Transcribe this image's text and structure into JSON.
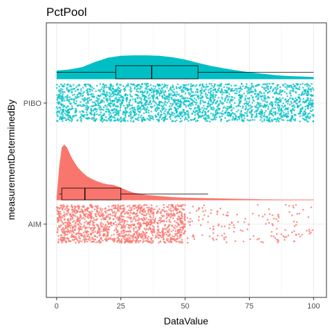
{
  "chart_data": {
    "type": "raincloud",
    "title": "PctPool",
    "xlabel": "DataValue",
    "ylabel": "measurementDeterminedBy",
    "xlim": [
      -4,
      105
    ],
    "x_ticks": [
      0,
      25,
      50,
      75,
      100
    ],
    "x_tick_labels": [
      "0",
      "25",
      "50",
      "75",
      "100"
    ],
    "categories": [
      "AIM",
      "PIBO"
    ],
    "grid": true,
    "legend": "none",
    "series": [
      {
        "category": "AIM",
        "color": "#F8766D",
        "box": {
          "min": 1,
          "q1": 2,
          "median": 11,
          "q3": 25,
          "max": 59
        },
        "density": {
          "x": [
            0,
            1,
            2,
            3,
            4,
            5,
            6,
            8,
            10,
            12,
            15,
            18,
            20,
            22,
            24,
            25,
            28,
            30,
            35,
            40,
            45,
            50,
            55,
            60,
            70,
            80,
            90,
            100
          ],
          "y": [
            0.05,
            0.6,
            0.95,
            1.0,
            0.95,
            0.85,
            0.75,
            0.6,
            0.5,
            0.42,
            0.35,
            0.3,
            0.28,
            0.27,
            0.24,
            0.22,
            0.16,
            0.13,
            0.09,
            0.07,
            0.05,
            0.04,
            0.035,
            0.03,
            0.02,
            0.01,
            0.006,
            0.003
          ]
        },
        "jitter_range": [
          0,
          100
        ],
        "jitter_density": "dense from 0 to 50, sparse from 50 to 100"
      },
      {
        "category": "PIBO",
        "color": "#00BFC4",
        "box": {
          "min": 0,
          "q1": 23,
          "median": 37,
          "q3": 55,
          "max": 100
        },
        "density": {
          "x": [
            0,
            5,
            10,
            15,
            20,
            25,
            30,
            35,
            40,
            45,
            50,
            55,
            60,
            65,
            70,
            75,
            80,
            85,
            90,
            95,
            100
          ],
          "y": [
            0.35,
            0.4,
            0.5,
            0.72,
            0.9,
            0.98,
            1.0,
            1.0,
            0.98,
            0.92,
            0.82,
            0.68,
            0.55,
            0.45,
            0.36,
            0.28,
            0.22,
            0.16,
            0.12,
            0.1,
            0.08
          ]
        },
        "jitter_range": [
          0,
          100
        ],
        "jitter_density": "uniform"
      }
    ]
  }
}
